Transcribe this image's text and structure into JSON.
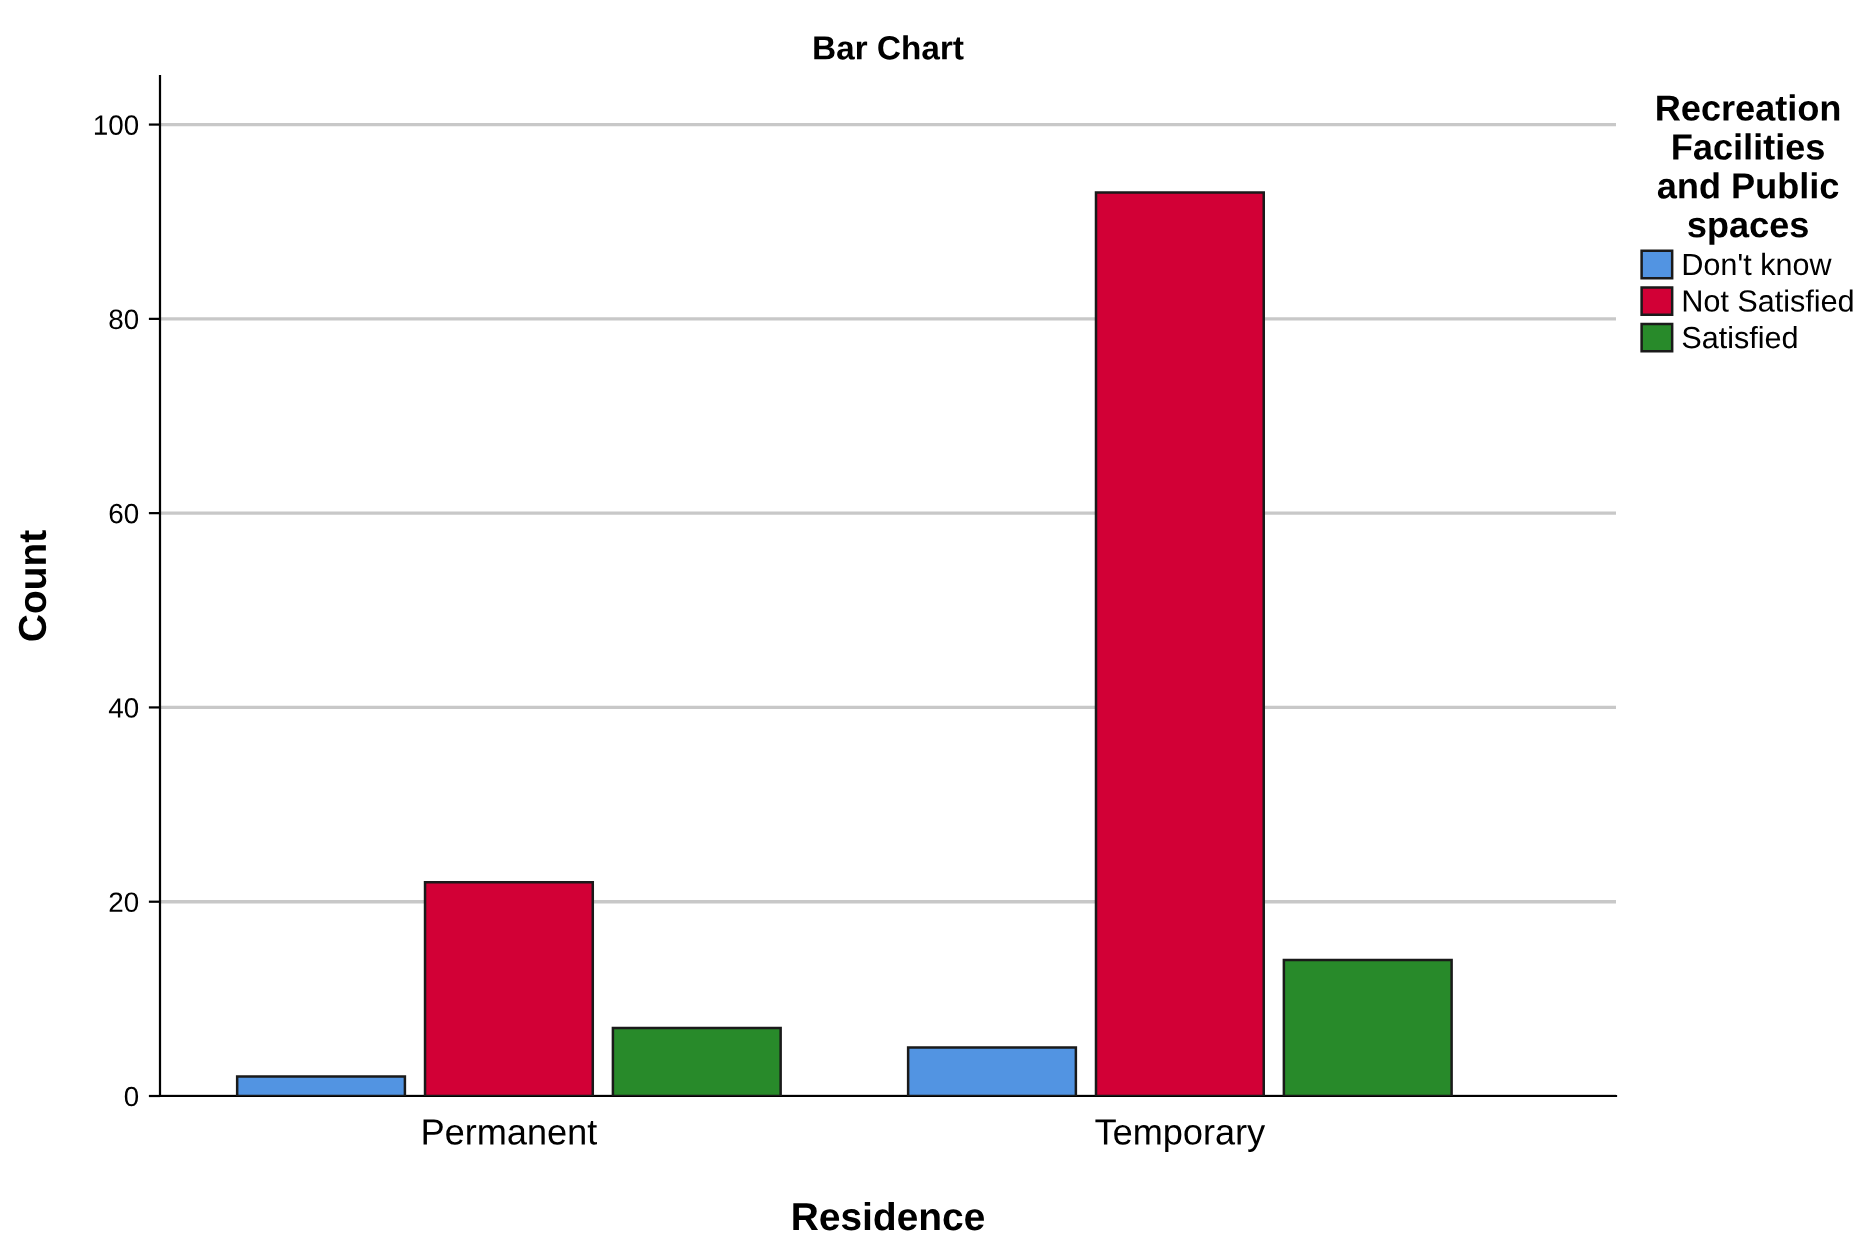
{
  "chart_data": {
    "type": "bar",
    "title": "Bar Chart",
    "xlabel": "Residence",
    "ylabel": "Count",
    "legend_title": "Recreation\nFacilities\nand Public\nspaces",
    "categories": [
      "Permanent",
      "Temporary"
    ],
    "series": [
      {
        "name": "Don't know",
        "color": "#5294e2",
        "values": [
          2,
          5
        ]
      },
      {
        "name": "Not Satisfied",
        "color": "#d20036",
        "values": [
          22,
          93
        ]
      },
      {
        "name": "Satisfied",
        "color": "#288a2a",
        "values": [
          7,
          14
        ]
      }
    ],
    "ylim": [
      0,
      105
    ],
    "yticks": [
      0,
      20,
      40,
      60,
      80,
      100
    ],
    "grid": "y",
    "legend": "right"
  }
}
